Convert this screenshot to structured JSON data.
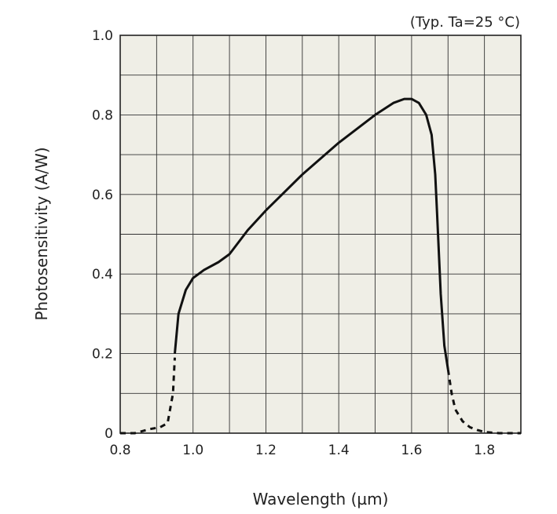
{
  "chart_data": {
    "type": "line",
    "annotation": "(Typ. Ta=25 °C)",
    "xlabel": "Wavelength (µm)",
    "ylabel": "Photosensitivity (A/W)",
    "xlim": [
      0.8,
      1.9
    ],
    "ylim": [
      0,
      1.0
    ],
    "x_ticks": [
      0.8,
      1.0,
      1.2,
      1.4,
      1.6,
      1.8
    ],
    "x_tick_labels": [
      "0.8",
      "1.0",
      "1.2",
      "1.4",
      "1.6",
      "1.8"
    ],
    "y_ticks": [
      0,
      0.2,
      0.4,
      0.6,
      0.8,
      1.0
    ],
    "y_tick_labels": [
      "0",
      "0.2",
      "0.4",
      "0.6",
      "0.8",
      "1.0"
    ],
    "grid": true,
    "background_color": "#efeee6",
    "line_color": "#111111",
    "series": [
      {
        "style": "dashed",
        "x": [
          0.8,
          0.84,
          0.88,
          0.91,
          0.93,
          0.945,
          0.95
        ],
        "y": [
          0.0,
          0.0,
          0.01,
          0.015,
          0.025,
          0.1,
          0.19
        ]
      },
      {
        "style": "solid",
        "x": [
          0.95,
          0.96,
          0.98,
          1.0,
          1.03,
          1.07,
          1.1,
          1.15,
          1.2,
          1.3,
          1.4,
          1.5,
          1.55,
          1.58,
          1.6,
          1.62,
          1.64,
          1.655,
          1.665,
          1.67,
          1.68,
          1.69,
          1.7
        ],
        "y": [
          0.2,
          0.3,
          0.36,
          0.39,
          0.41,
          0.43,
          0.45,
          0.51,
          0.56,
          0.65,
          0.73,
          0.8,
          0.83,
          0.84,
          0.84,
          0.83,
          0.8,
          0.75,
          0.65,
          0.55,
          0.35,
          0.22,
          0.16
        ]
      },
      {
        "style": "dashed",
        "x": [
          1.7,
          1.71,
          1.72,
          1.74,
          1.76,
          1.78,
          1.8,
          1.84,
          1.88,
          1.9
        ],
        "y": [
          0.16,
          0.1,
          0.06,
          0.03,
          0.015,
          0.008,
          0.003,
          0.0,
          0.0,
          0.0
        ]
      }
    ]
  }
}
